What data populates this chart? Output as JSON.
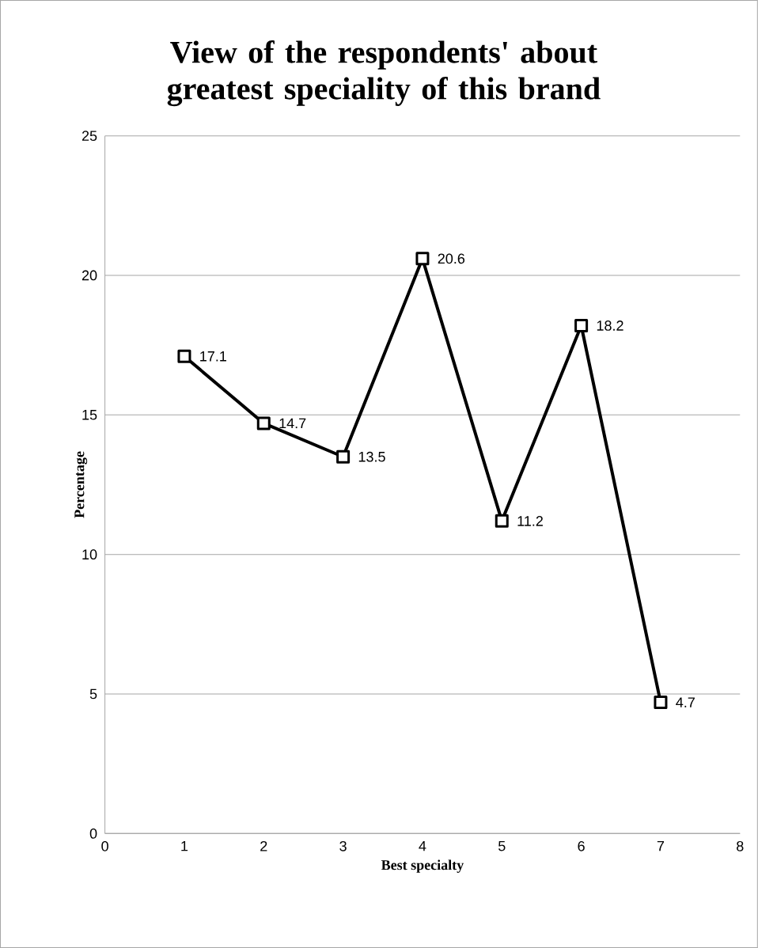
{
  "chart_data": {
    "type": "line",
    "title": "View of the respondents' about greatest speciality of this brand",
    "xlabel": "Best specialty",
    "ylabel": "Percentage",
    "x": [
      1,
      2,
      3,
      4,
      5,
      6,
      7
    ],
    "series": [
      {
        "color": "#000000",
        "values": [
          17.1,
          14.7,
          13.5,
          20.6,
          11.2,
          18.2,
          4.7
        ]
      }
    ],
    "marker": "square",
    "line_style": "solid",
    "data_labels": true,
    "grid": "y",
    "xlim": [
      0,
      8
    ],
    "ylim": [
      0,
      25
    ],
    "xticks": [
      0,
      1,
      2,
      3,
      4,
      5,
      6,
      7,
      8
    ],
    "yticks": [
      0,
      5,
      10,
      15,
      20,
      25
    ]
  }
}
